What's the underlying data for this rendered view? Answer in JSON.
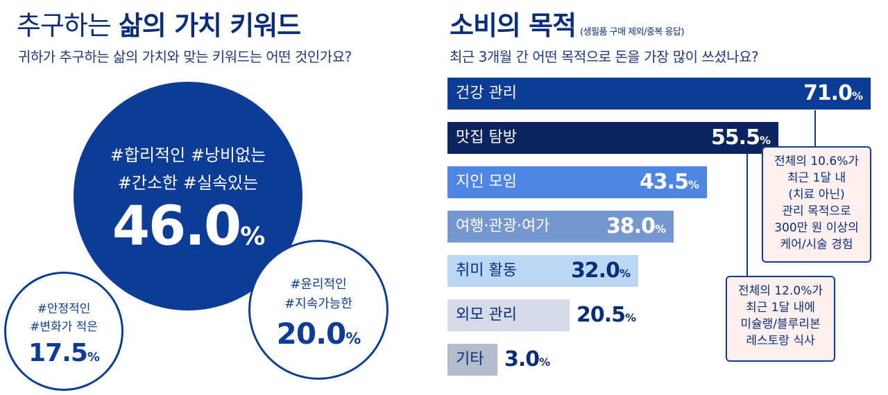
{
  "left": {
    "title_light": "추구하는",
    "title_bold": "삶의 가치 키워드",
    "subtitle": "귀하가 추구하는 삶의 가치와 맞는 키워드는 어떤 것인가요?",
    "circles": [
      {
        "tags_line1": "#합리적인  #낭비없는",
        "tags_line2": "#간소한  #실속있는",
        "value": "46.0",
        "unit": "%"
      },
      {
        "tags_line1": "#윤리적인",
        "tags_line2": "#지속가능한",
        "value": "20.0",
        "unit": "%"
      },
      {
        "tags_line1": "#안정적인",
        "tags_line2": "#변화가 적은",
        "value": "17.5",
        "unit": "%"
      }
    ]
  },
  "right": {
    "title": "소비의 목적",
    "title_note": "(생필품 구매 제외/중복 응답)",
    "subtitle": "최근 3개월 간 어떤 목적으로 돈을 가장 많이 쓰셨나요?",
    "notes": [
      {
        "lines": [
          "전체의 10.6%가",
          "최근 1달 내",
          "(치료 아닌)",
          "관리 목적으로",
          "300만 원 이상의",
          "케어/시술 경험"
        ]
      },
      {
        "lines": [
          "전체의 12.0%가",
          "최근 1달 내에",
          "미슐랭/블루리본",
          "레스토랑 식사"
        ]
      }
    ]
  },
  "chart_data": {
    "type": "bar",
    "orientation": "horizontal",
    "title": "소비의 목적",
    "subtitle": "최근 3개월 간 어떤 목적으로 돈을 가장 많이 쓰셨나요?",
    "unit": "%",
    "categories": [
      "건강 관리",
      "맛집 탐방",
      "지인 모임",
      "여행·관광·여가",
      "취미 활동",
      "외모 관리",
      "기타"
    ],
    "values": [
      71.0,
      55.5,
      43.5,
      38.0,
      32.0,
      20.5,
      3.0
    ],
    "labels": [
      "71.0",
      "55.5",
      "43.5",
      "38.0",
      "32.0",
      "20.5",
      "3.0"
    ],
    "colors": [
      "#0d3c96",
      "#0b2460",
      "#4f86e6",
      "#7598cf",
      "#bcd7f3",
      "#d5dbe6",
      "#b4bccb"
    ],
    "label_colors": [
      "#ffffff",
      "#ffffff",
      "#ffffff",
      "#ffffff",
      "#0a2d7a",
      "#0a2d7a",
      "#0a2d7a"
    ]
  }
}
